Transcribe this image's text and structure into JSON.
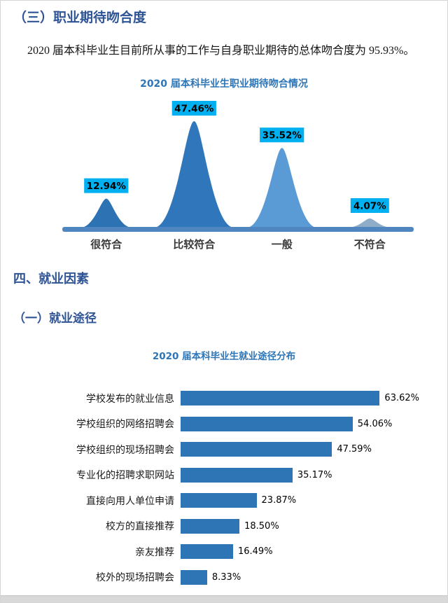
{
  "page": {
    "section3_heading": "（三）职业期待吻合度",
    "paragraph": "2020 届本科毕业生目前所从事的工作与自身职业期待的总体吻合度为 95.93%。",
    "section4_heading": "四、就业因素",
    "section4_sub": "（一）就业途径"
  },
  "chart_data": [
    {
      "type": "area",
      "subtype": "peaks",
      "title": "2020 届本科毕业生职业期待吻合情况",
      "categories": [
        "很符合",
        "比较符合",
        "一般",
        "不符合"
      ],
      "values": [
        12.94,
        47.46,
        35.52,
        4.07
      ],
      "labels": [
        "12.94%",
        "47.46%",
        "35.52%",
        "4.07%"
      ],
      "unit": "%",
      "ylim": [
        0,
        50
      ],
      "grid": false,
      "legend": "none",
      "peak_colors": [
        "#2d72b3",
        "#2f77ba",
        "#5b9bd5",
        "#8fadc8"
      ],
      "label_bg": "#00b0f0",
      "label_text_color": "#000000",
      "axis_color": "#4f86c0"
    },
    {
      "type": "bar",
      "orientation": "horizontal",
      "title": "2020 届本科毕业生就业途径分布",
      "categories": [
        "学校发布的就业信息",
        "学校组织的网络招聘会",
        "学校组织的现场招聘会",
        "专业化的招聘求职网站",
        "直接向用人单位申请",
        "校方的直接推荐",
        "亲友推荐",
        "校外的现场招聘会"
      ],
      "values": [
        63.62,
        54.06,
        47.59,
        35.17,
        23.87,
        18.5,
        16.49,
        8.33
      ],
      "labels": [
        "63.62%",
        "54.06%",
        "47.59%",
        "35.17%",
        "23.87%",
        "18.50%",
        "16.49%",
        "8.33%"
      ],
      "unit": "%",
      "xlim": [
        0,
        75
      ],
      "grid": false,
      "legend": "none",
      "bar_color": "#2e75b6"
    }
  ]
}
